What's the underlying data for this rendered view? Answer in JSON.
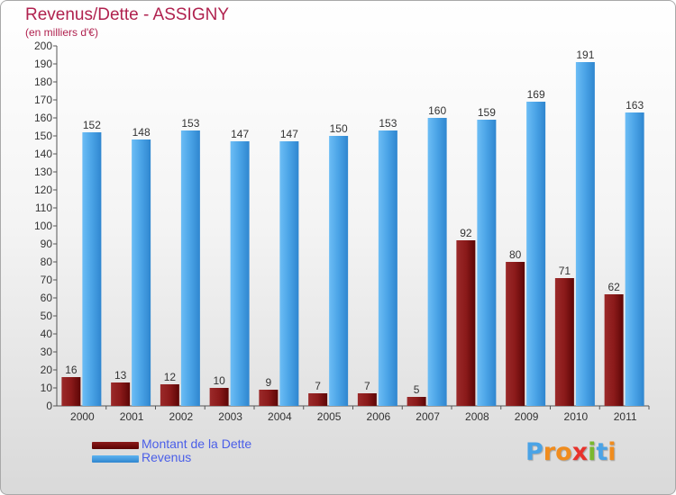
{
  "chart_data": {
    "type": "bar",
    "title": "Revenus/Dette - ASSIGNY",
    "subtitle": "(en milliers d'€)",
    "categories": [
      "2000",
      "2001",
      "2002",
      "2003",
      "2004",
      "2005",
      "2006",
      "2007",
      "2008",
      "2009",
      "2010",
      "2011"
    ],
    "series": [
      {
        "name": "Montant de la Dette",
        "values": [
          16,
          13,
          12,
          10,
          9,
          7,
          7,
          5,
          92,
          80,
          71,
          62
        ],
        "color": "#8b1a1a"
      },
      {
        "name": "Revenus",
        "values": [
          152,
          148,
          153,
          147,
          147,
          150,
          153,
          160,
          159,
          169,
          191,
          163
        ],
        "color": "#4aa3e6"
      }
    ],
    "ylim": [
      0,
      200
    ],
    "yticks": [
      0,
      10,
      20,
      30,
      40,
      50,
      60,
      70,
      80,
      90,
      100,
      110,
      120,
      130,
      140,
      150,
      160,
      170,
      180,
      190,
      200
    ],
    "grid": false,
    "legend": "bottom-left",
    "data_labels": true
  },
  "logo": {
    "text": "Proxiti",
    "letter_colors": [
      "#4aa3e6",
      "#f08c1e",
      "#f08c1e",
      "#e8322b",
      "#7ab82e",
      "#4aa3e6",
      "#f08c1e"
    ]
  }
}
